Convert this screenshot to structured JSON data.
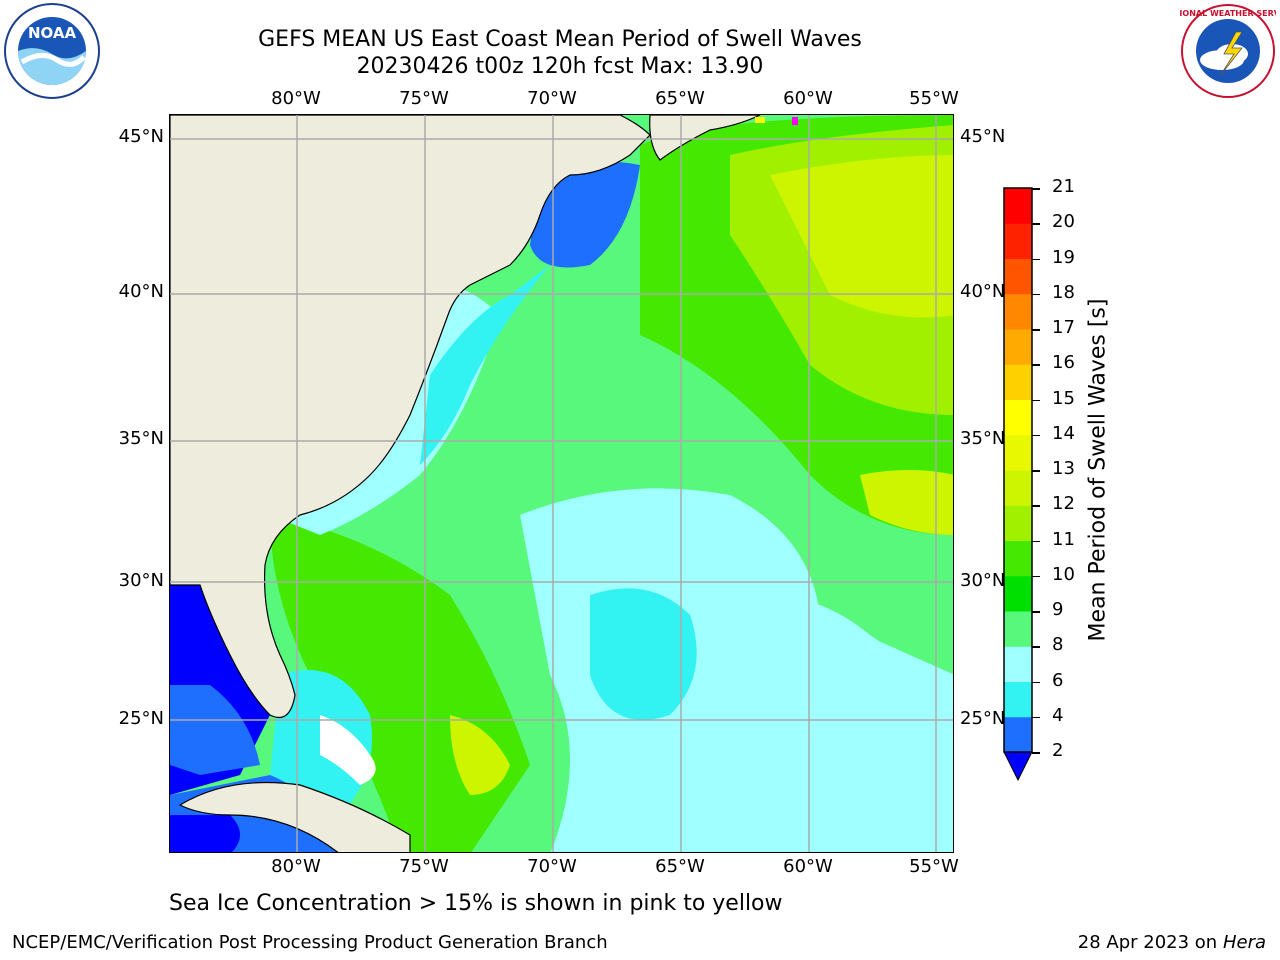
{
  "title": {
    "line1": "GEFS MEAN US East Coast Mean Period of Swell Waves",
    "line2": "20230426 t00z 120h fcst   Max: 13.90"
  },
  "map": {
    "lon_labels": [
      "80°W",
      "75°W",
      "70°W",
      "65°W",
      "60°W",
      "55°W"
    ],
    "lat_labels": [
      "45°N",
      "40°N",
      "35°N",
      "30°N",
      "25°N"
    ],
    "land_color": "#eeecdc",
    "grid_color": "#aaaaaa"
  },
  "colorbar": {
    "label": "Mean Period of Swell Waves [s]",
    "ticks": [
      "2",
      "4",
      "6",
      "8",
      "9",
      "10",
      "11",
      "12",
      "13",
      "14",
      "15",
      "16",
      "17",
      "18",
      "19",
      "20",
      "21"
    ],
    "colors": [
      "#1f6fff",
      "#00c8ff",
      "#33f2f2",
      "#a0ffff",
      "#58f87c",
      "#00e000",
      "#44e800",
      "#a0f000",
      "#cdf500",
      "#e8f800",
      "#ffff00",
      "#ffd000",
      "#ffaa00",
      "#ff8800",
      "#ff5500",
      "#ff2200",
      "#ff0000"
    ],
    "under_color": "#0000ff"
  },
  "footer": {
    "note": "Sea Ice Concentration > 15% is shown in pink to yellow",
    "credit": "NCEP/EMC/Verification Post Processing Product Generation Branch",
    "date": "28 Apr 2023 on ",
    "machine": "Hera"
  },
  "logos": {
    "left": "NOAA",
    "right": "NATIONAL WEATHER SERVICE"
  }
}
